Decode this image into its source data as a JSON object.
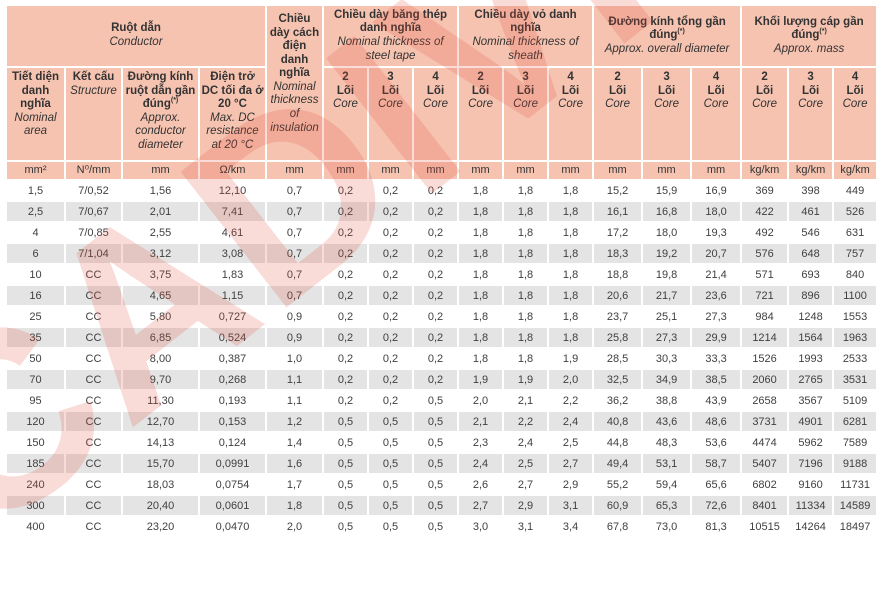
{
  "watermark_text": "CADIVI",
  "colors": {
    "header_bg": "#f6c3b0",
    "row_bg": "#ffffff",
    "row_alt_bg": "#e4e4e4",
    "text": "#3d3d3d",
    "watermark_red": "#e14b3e"
  },
  "header": {
    "conductor": {
      "vi": "Ruột dẫn",
      "en": "Conductor"
    },
    "columns": {
      "area": {
        "vi": "Tiết diện danh nghĩa",
        "en": "Nominal area",
        "unit": "mm²"
      },
      "structure": {
        "vi": "Kết cấu",
        "en": "Structure",
        "unit": "N⁰/mm"
      },
      "conductor_diameter": {
        "vi": "Đường kính ruột dẫn gần đúng",
        "sup": "(*)",
        "en": "Approx. conductor diameter",
        "unit": "mm"
      },
      "resistance": {
        "vi": "Điện trở DC tối đa ở 20 °C",
        "en": "Max. DC resistance at 20 °C",
        "unit": "Ω/km"
      },
      "insulation": {
        "vi": "Chiều dày cách điện danh nghĩa",
        "en": "Nominal thickness of insulation",
        "unit": "mm"
      }
    },
    "core_groups": [
      {
        "vi": "Chiều dày băng thép danh nghĩa",
        "en": "Nominal thickness of steel tape",
        "unit": "mm"
      },
      {
        "vi": "Chiều dày vỏ danh nghĩa",
        "en": "Nominal thickness of sheath",
        "unit": "mm"
      },
      {
        "vi": "Đường kính tổng gần đúng",
        "sup": "(*)",
        "en": "Approx. overall diameter",
        "unit": "mm"
      },
      {
        "vi": "Khối lượng cáp gần đúng",
        "sup": "(*)",
        "en": "Approx. mass",
        "unit": "kg/km"
      }
    ],
    "core_counts": [
      "2",
      "3",
      "4"
    ],
    "core_label_vi": "Lõi",
    "core_label_en": "Core"
  },
  "rows": [
    [
      "1,5",
      "7/0,52",
      "1,56",
      "12,10",
      "0,7",
      "0,2",
      "0,2",
      "0,2",
      "1,8",
      "1,8",
      "1,8",
      "15,2",
      "15,9",
      "16,9",
      "369",
      "398",
      "449"
    ],
    [
      "2,5",
      "7/0,67",
      "2,01",
      "7,41",
      "0,7",
      "0,2",
      "0,2",
      "0,2",
      "1,8",
      "1,8",
      "1,8",
      "16,1",
      "16,8",
      "18,0",
      "422",
      "461",
      "526"
    ],
    [
      "4",
      "7/0,85",
      "2,55",
      "4,61",
      "0,7",
      "0,2",
      "0,2",
      "0,2",
      "1,8",
      "1,8",
      "1,8",
      "17,2",
      "18,0",
      "19,3",
      "492",
      "546",
      "631"
    ],
    [
      "6",
      "7/1,04",
      "3,12",
      "3,08",
      "0,7",
      "0,2",
      "0,2",
      "0,2",
      "1,8",
      "1,8",
      "1,8",
      "18,3",
      "19,2",
      "20,7",
      "576",
      "648",
      "757"
    ],
    [
      "10",
      "CC",
      "3,75",
      "1,83",
      "0,7",
      "0,2",
      "0,2",
      "0,2",
      "1,8",
      "1,8",
      "1,8",
      "18,8",
      "19,8",
      "21,4",
      "571",
      "693",
      "840"
    ],
    [
      "16",
      "CC",
      "4,65",
      "1,15",
      "0,7",
      "0,2",
      "0,2",
      "0,2",
      "1,8",
      "1,8",
      "1,8",
      "20,6",
      "21,7",
      "23,6",
      "721",
      "896",
      "1100"
    ],
    [
      "25",
      "CC",
      "5,80",
      "0,727",
      "0,9",
      "0,2",
      "0,2",
      "0,2",
      "1,8",
      "1,8",
      "1,8",
      "23,7",
      "25,1",
      "27,3",
      "984",
      "1248",
      "1553"
    ],
    [
      "35",
      "CC",
      "6,85",
      "0,524",
      "0,9",
      "0,2",
      "0,2",
      "0,2",
      "1,8",
      "1,8",
      "1,8",
      "25,8",
      "27,3",
      "29,9",
      "1214",
      "1564",
      "1963"
    ],
    [
      "50",
      "CC",
      "8,00",
      "0,387",
      "1,0",
      "0,2",
      "0,2",
      "0,2",
      "1,8",
      "1,8",
      "1,9",
      "28,5",
      "30,3",
      "33,3",
      "1526",
      "1993",
      "2533"
    ],
    [
      "70",
      "CC",
      "9,70",
      "0,268",
      "1,1",
      "0,2",
      "0,2",
      "0,2",
      "1,9",
      "1,9",
      "2,0",
      "32,5",
      "34,9",
      "38,5",
      "2060",
      "2765",
      "3531"
    ],
    [
      "95",
      "CC",
      "11,30",
      "0,193",
      "1,1",
      "0,2",
      "0,2",
      "0,5",
      "2,0",
      "2,1",
      "2,2",
      "36,2",
      "38,8",
      "43,9",
      "2658",
      "3567",
      "5109"
    ],
    [
      "120",
      "CC",
      "12,70",
      "0,153",
      "1,2",
      "0,5",
      "0,5",
      "0,5",
      "2,1",
      "2,2",
      "2,4",
      "40,8",
      "43,6",
      "48,6",
      "3731",
      "4901",
      "6281"
    ],
    [
      "150",
      "CC",
      "14,13",
      "0,124",
      "1,4",
      "0,5",
      "0,5",
      "0,5",
      "2,3",
      "2,4",
      "2,5",
      "44,8",
      "48,3",
      "53,6",
      "4474",
      "5962",
      "7589"
    ],
    [
      "185",
      "CC",
      "15,70",
      "0,0991",
      "1,6",
      "0,5",
      "0,5",
      "0,5",
      "2,4",
      "2,5",
      "2,7",
      "49,4",
      "53,1",
      "58,7",
      "5407",
      "7196",
      "9188"
    ],
    [
      "240",
      "CC",
      "18,03",
      "0,0754",
      "1,7",
      "0,5",
      "0,5",
      "0,5",
      "2,6",
      "2,7",
      "2,9",
      "55,2",
      "59,4",
      "65,6",
      "6802",
      "9160",
      "11731"
    ],
    [
      "300",
      "CC",
      "20,40",
      "0,0601",
      "1,8",
      "0,5",
      "0,5",
      "0,5",
      "2,7",
      "2,9",
      "3,1",
      "60,9",
      "65,3",
      "72,6",
      "8401",
      "11334",
      "14589"
    ],
    [
      "400",
      "CC",
      "23,20",
      "0,0470",
      "2,0",
      "0,5",
      "0,5",
      "0,5",
      "3,0",
      "3,1",
      "3,4",
      "67,8",
      "73,0",
      "81,3",
      "10515",
      "14264",
      "18497"
    ]
  ]
}
